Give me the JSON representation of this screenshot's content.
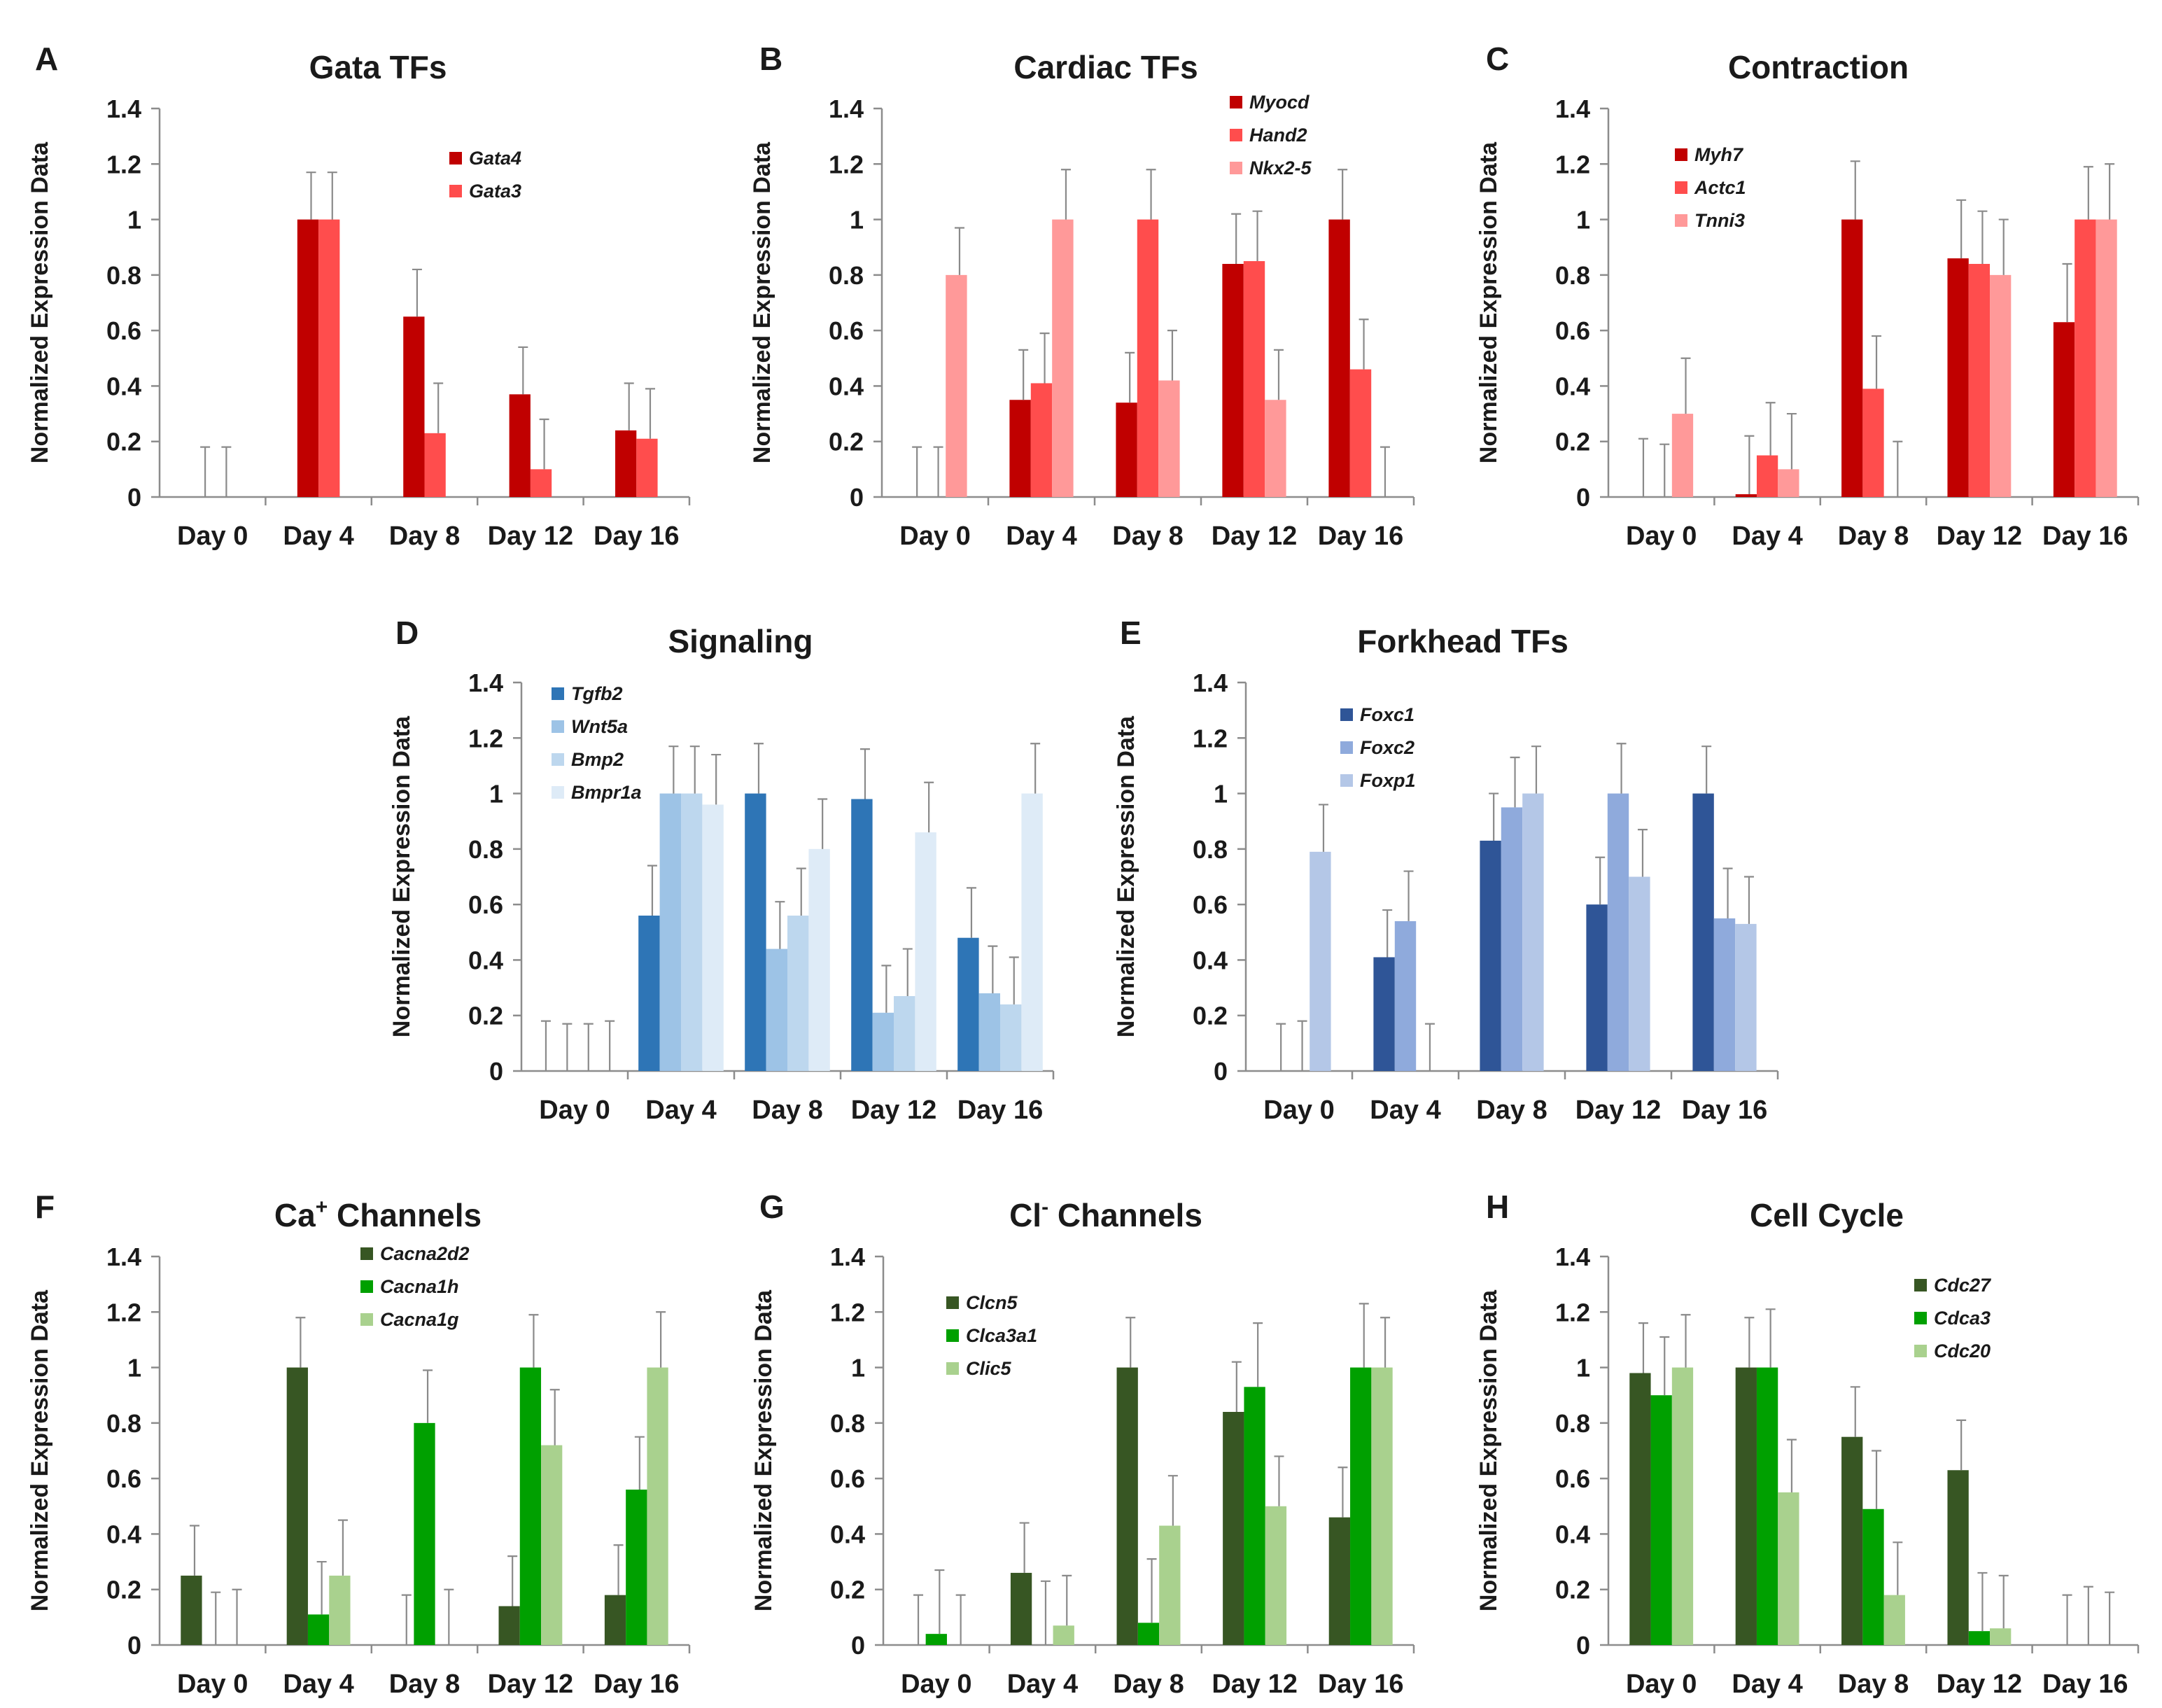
{
  "chart_data": [
    {
      "letter": "A",
      "title": "Gata TFs",
      "title_sup": "",
      "title_rest": "",
      "type": "bar",
      "ylabel": "Normalized Expression Data",
      "ylim": [
        0,
        1.4
      ],
      "yticks": [
        "0",
        "0.2",
        "0.4",
        "0.6",
        "0.8",
        "1",
        "1.2",
        "1.4"
      ],
      "categories": [
        "Day 0",
        "Day 4",
        "Day 8",
        "Day 12",
        "Day 16"
      ],
      "legend_position": "top-right",
      "series": [
        {
          "name": "Gata4",
          "color": "#c00000",
          "values": [
            0,
            1.0,
            0.65,
            0.37,
            0.24
          ],
          "errors": [
            0.18,
            0.17,
            0.17,
            0.17,
            0.17
          ]
        },
        {
          "name": "Gata3",
          "color": "#ff4d4d",
          "values": [
            0,
            1.0,
            0.23,
            0.1,
            0.21
          ],
          "errors": [
            0.18,
            0.17,
            0.18,
            0.18,
            0.18
          ]
        }
      ]
    },
    {
      "letter": "B",
      "title": "Cardiac TFs",
      "title_sup": "",
      "title_rest": "",
      "type": "bar",
      "ylabel": "Normalized Expression Data",
      "ylim": [
        0,
        1.4
      ],
      "yticks": [
        "0",
        "0.2",
        "0.4",
        "0.6",
        "0.8",
        "1",
        "1.2",
        "1.4"
      ],
      "categories": [
        "Day 0",
        "Day 4",
        "Day 8",
        "Day 12",
        "Day 16"
      ],
      "legend_position": "top-right",
      "series": [
        {
          "name": "Myocd",
          "color": "#c00000",
          "values": [
            0,
            0.35,
            0.34,
            0.84,
            1.0
          ],
          "errors": [
            0.18,
            0.18,
            0.18,
            0.18,
            0.18
          ]
        },
        {
          "name": "Hand2",
          "color": "#ff4d4d",
          "values": [
            0,
            0.41,
            1.0,
            0.85,
            0.46
          ],
          "errors": [
            0.18,
            0.18,
            0.18,
            0.18,
            0.18
          ]
        },
        {
          "name": "Nkx2-5",
          "color": "#ff9999",
          "values": [
            0.8,
            1.0,
            0.42,
            0.35,
            0
          ],
          "errors": [
            0.17,
            0.18,
            0.18,
            0.18,
            0.18
          ]
        }
      ]
    },
    {
      "letter": "C",
      "title": "Contraction",
      "title_sup": "",
      "title_rest": "",
      "type": "bar",
      "ylabel": "Normalized Expression Data",
      "ylim": [
        0,
        1.4
      ],
      "yticks": [
        "0",
        "0.2",
        "0.4",
        "0.6",
        "0.8",
        "1",
        "1.2",
        "1.4"
      ],
      "categories": [
        "Day 0",
        "Day 4",
        "Day 8",
        "Day 12",
        "Day 16"
      ],
      "legend_position": "top-left",
      "series": [
        {
          "name": "Myh7",
          "color": "#c00000",
          "values": [
            0,
            0.01,
            1.0,
            0.86,
            0.63
          ],
          "errors": [
            0.21,
            0.21,
            0.21,
            0.21,
            0.21
          ]
        },
        {
          "name": "Actc1",
          "color": "#ff4d4d",
          "values": [
            0,
            0.15,
            0.39,
            0.84,
            1.0
          ],
          "errors": [
            0.19,
            0.19,
            0.19,
            0.19,
            0.19
          ]
        },
        {
          "name": "Tnni3",
          "color": "#ff9999",
          "values": [
            0.3,
            0.1,
            0,
            0.8,
            1.0
          ],
          "errors": [
            0.2,
            0.2,
            0.2,
            0.2,
            0.2
          ]
        }
      ]
    },
    {
      "letter": "D",
      "title": "Signaling",
      "title_sup": "",
      "title_rest": "",
      "type": "bar",
      "ylabel": "Normalized Expression Data",
      "ylim": [
        0,
        1.4
      ],
      "yticks": [
        "0",
        "0.2",
        "0.4",
        "0.6",
        "0.8",
        "1",
        "1.2",
        "1.4"
      ],
      "categories": [
        "Day 0",
        "Day 4",
        "Day 8",
        "Day 12",
        "Day 16"
      ],
      "legend_position": "top-left",
      "series": [
        {
          "name": "Tgfb2",
          "color": "#2e75b6",
          "values": [
            0,
            0.56,
            1.0,
            0.98,
            0.48
          ],
          "errors": [
            0.18,
            0.18,
            0.18,
            0.18,
            0.18
          ]
        },
        {
          "name": "Wnt5a",
          "color": "#9dc3e6",
          "values": [
            0,
            1.0,
            0.44,
            0.21,
            0.28
          ],
          "errors": [
            0.17,
            0.17,
            0.17,
            0.17,
            0.17
          ]
        },
        {
          "name": "Bmp2",
          "color": "#bdd7ee",
          "values": [
            0,
            1.0,
            0.56,
            0.27,
            0.24
          ],
          "errors": [
            0.17,
            0.17,
            0.17,
            0.17,
            0.17
          ]
        },
        {
          "name": "Bmpr1a",
          "color": "#deebf7",
          "values": [
            0,
            0.96,
            0.8,
            0.86,
            1.0
          ],
          "errors": [
            0.18,
            0.18,
            0.18,
            0.18,
            0.18
          ]
        }
      ]
    },
    {
      "letter": "E",
      "title": "Forkhead TFs",
      "title_sup": "",
      "title_rest": "",
      "type": "bar",
      "ylabel": "Normalized Expression Data",
      "ylim": [
        0,
        1.4
      ],
      "yticks": [
        "0",
        "0.2",
        "0.4",
        "0.6",
        "0.8",
        "1",
        "1.2",
        "1.4"
      ],
      "categories": [
        "Day 0",
        "Day 4",
        "Day 8",
        "Day 12",
        "Day 16"
      ],
      "legend_position": "top-left",
      "series": [
        {
          "name": "Foxc1",
          "color": "#2f5597",
          "values": [
            0,
            0.41,
            0.83,
            0.6,
            1.0
          ],
          "errors": [
            0.17,
            0.17,
            0.17,
            0.17,
            0.17
          ]
        },
        {
          "name": "Foxc2",
          "color": "#8faadc",
          "values": [
            0,
            0.54,
            0.95,
            1.0,
            0.55
          ],
          "errors": [
            0.18,
            0.18,
            0.18,
            0.18,
            0.18
          ]
        },
        {
          "name": "Foxp1",
          "color": "#b4c7e7",
          "values": [
            0.79,
            0,
            1.0,
            0.7,
            0.53
          ],
          "errors": [
            0.17,
            0.17,
            0.17,
            0.17,
            0.17
          ]
        }
      ]
    },
    {
      "letter": "F",
      "title": "Ca",
      "title_sup": "+",
      "title_rest": " Channels",
      "type": "bar",
      "ylabel": "Normalized Expression Data",
      "ylim": [
        0,
        1.4
      ],
      "yticks": [
        "0",
        "0.2",
        "0.4",
        "0.6",
        "0.8",
        "1",
        "1.2",
        "1.4"
      ],
      "categories": [
        "Day 0",
        "Day 4",
        "Day 8",
        "Day 12",
        "Day 16"
      ],
      "legend_position": "top-right",
      "series": [
        {
          "name": "Cacna2d2",
          "color": "#375623",
          "values": [
            0.25,
            1.0,
            0,
            0.14,
            0.18
          ],
          "errors": [
            0.18,
            0.18,
            0.18,
            0.18,
            0.18
          ]
        },
        {
          "name": "Cacna1h",
          "color": "#00a000",
          "values": [
            0,
            0.11,
            0.8,
            1.0,
            0.56
          ],
          "errors": [
            0.19,
            0.19,
            0.19,
            0.19,
            0.19
          ]
        },
        {
          "name": "Cacna1g",
          "color": "#a9d18e",
          "values": [
            0,
            0.25,
            0,
            0.72,
            1.0
          ],
          "errors": [
            0.2,
            0.2,
            0.2,
            0.2,
            0.2
          ]
        }
      ]
    },
    {
      "letter": "G",
      "title": "Cl",
      "title_sup": "-",
      "title_rest": " Channels",
      "type": "bar",
      "ylabel": "Normalized Expression Data",
      "ylim": [
        0,
        1.4
      ],
      "yticks": [
        "0",
        "0.2",
        "0.4",
        "0.6",
        "0.8",
        "1",
        "1.2",
        "1.4"
      ],
      "categories": [
        "Day 0",
        "Day 4",
        "Day 8",
        "Day 12",
        "Day 16"
      ],
      "legend_position": "top-left",
      "series": [
        {
          "name": "Clcn5",
          "color": "#375623",
          "values": [
            0,
            0.26,
            1.0,
            0.84,
            0.46
          ],
          "errors": [
            0.18,
            0.18,
            0.18,
            0.18,
            0.18
          ]
        },
        {
          "name": "Clca3a1",
          "color": "#00a000",
          "values": [
            0.04,
            0,
            0.08,
            0.93,
            1.0
          ],
          "errors": [
            0.23,
            0.23,
            0.23,
            0.23,
            0.23
          ]
        },
        {
          "name": "Clic5",
          "color": "#a9d18e",
          "values": [
            0,
            0.07,
            0.43,
            0.5,
            1.0
          ],
          "errors": [
            0.18,
            0.18,
            0.18,
            0.18,
            0.18
          ]
        }
      ]
    },
    {
      "letter": "H",
      "title": "Cell Cycle",
      "title_sup": "",
      "title_rest": "",
      "type": "bar",
      "ylabel": "Normalized Expression Data",
      "ylim": [
        0,
        1.4
      ],
      "yticks": [
        "0",
        "0.2",
        "0.4",
        "0.6",
        "0.8",
        "1",
        "1.2",
        "1.4"
      ],
      "categories": [
        "Day 0",
        "Day 4",
        "Day 8",
        "Day 12",
        "Day 16"
      ],
      "legend_position": "top-right",
      "series": [
        {
          "name": "Cdc27",
          "color": "#375623",
          "values": [
            0.98,
            1.0,
            0.75,
            0.63,
            0
          ],
          "errors": [
            0.18,
            0.18,
            0.18,
            0.18,
            0.18
          ]
        },
        {
          "name": "Cdca3",
          "color": "#00a000",
          "values": [
            0.9,
            1.0,
            0.49,
            0.05,
            0
          ],
          "errors": [
            0.21,
            0.21,
            0.21,
            0.21,
            0.21
          ]
        },
        {
          "name": "Cdc20",
          "color": "#a9d18e",
          "values": [
            1.0,
            0.55,
            0.18,
            0.06,
            0
          ],
          "errors": [
            0.19,
            0.19,
            0.19,
            0.19,
            0.19
          ]
        }
      ]
    }
  ]
}
